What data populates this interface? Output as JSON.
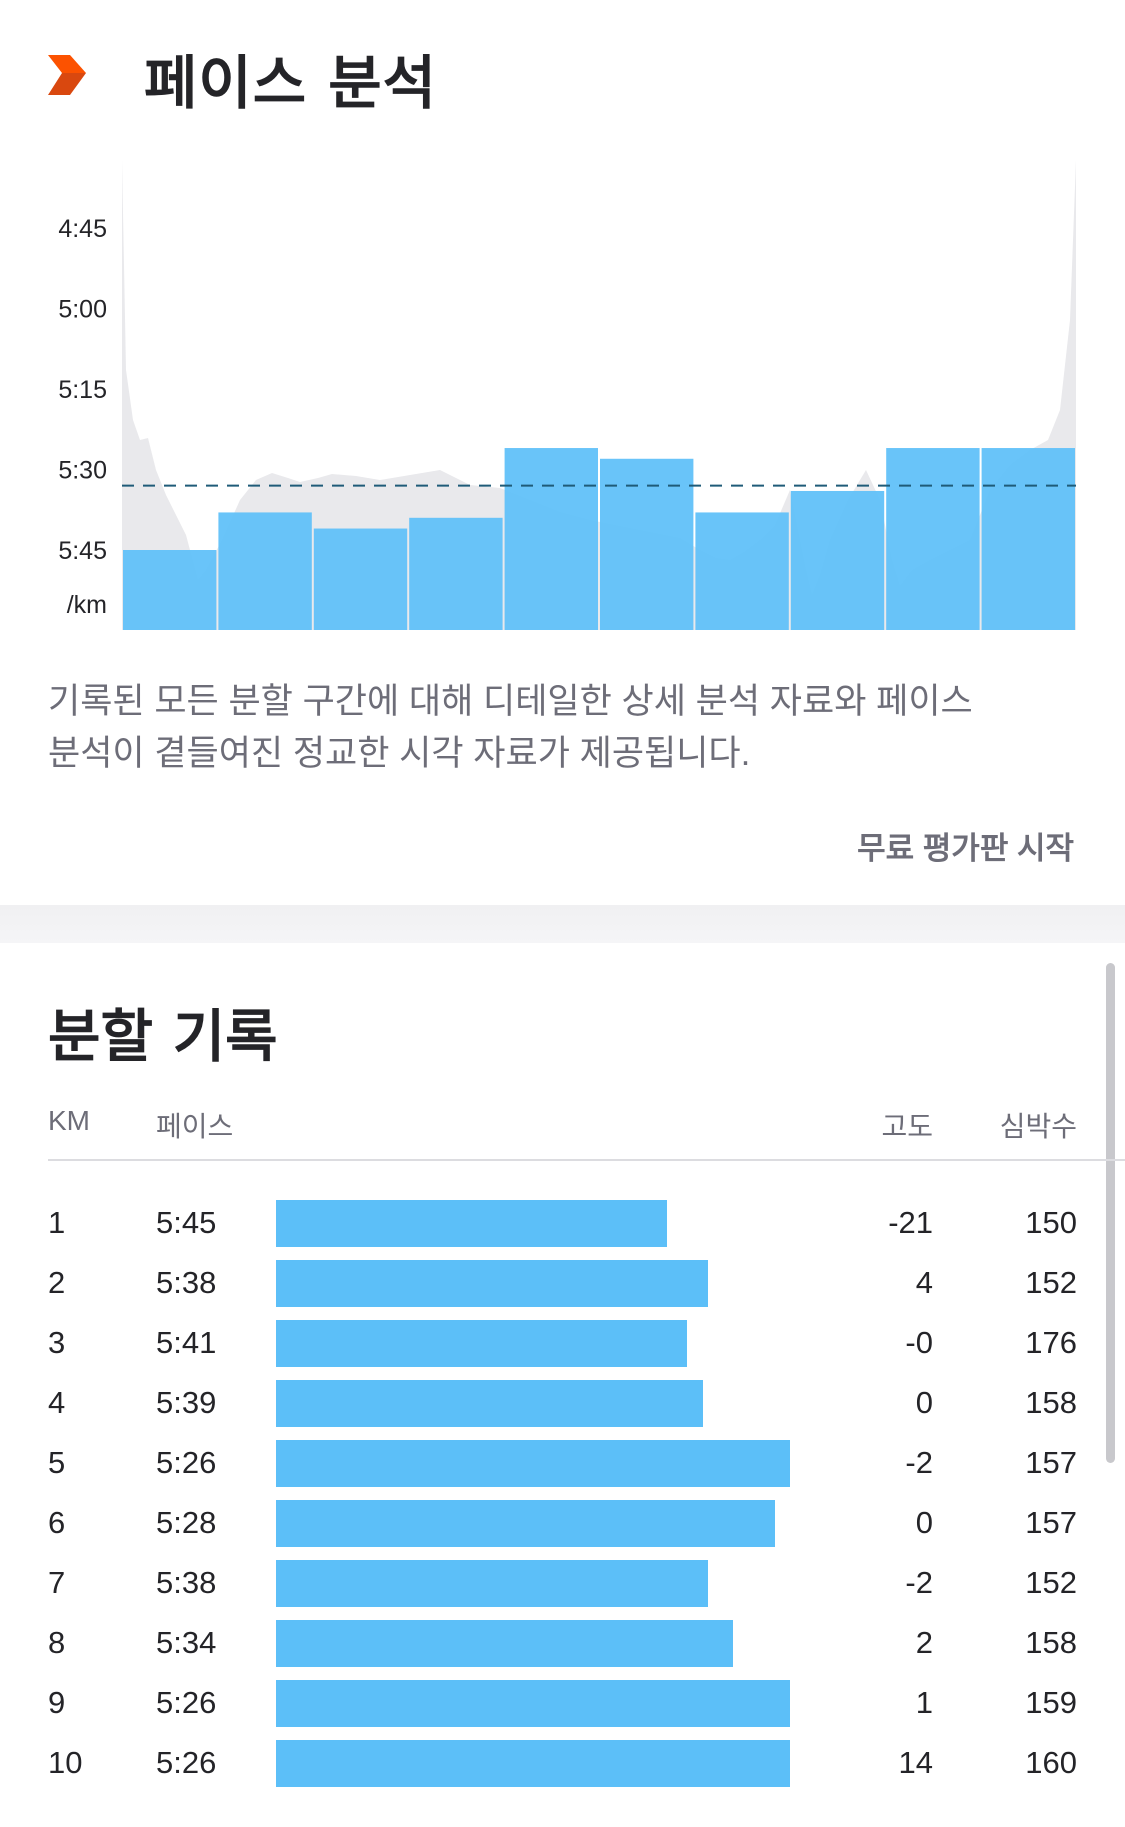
{
  "pace_card": {
    "title": "페이스 분석",
    "logo_icon": "strava-chevron-icon",
    "description_line1": "기록된 모든 분할 구간에 대해 디테일한 상세 분석 자료와 페이스",
    "description_line2": "분석이 곁들여진 정교한 시각 자료가 제공됩니다.",
    "trial_link": "무료 평가판 시작"
  },
  "chart_data": {
    "type": "bar",
    "categories": [
      "1",
      "2",
      "3",
      "4",
      "5",
      "6",
      "7",
      "8",
      "9",
      "10"
    ],
    "values": [
      "5:45",
      "5:38",
      "5:41",
      "5:39",
      "5:26",
      "5:28",
      "5:38",
      "5:34",
      "5:26",
      "5:26"
    ],
    "values_seconds_per_km": [
      345,
      338,
      341,
      339,
      326,
      328,
      338,
      334,
      326,
      326
    ],
    "y_tick_labels": [
      "4:45",
      "5:00",
      "5:15",
      "5:30",
      "5:45"
    ],
    "y_unit_label": "/km",
    "average_line": "5:33",
    "average_line_seconds": 333,
    "y_axis_inverted": true,
    "ylim_seconds": [
      360,
      278
    ],
    "bar_color": "#5cbff8",
    "background_trace_color": "#e9e9ec",
    "average_line_color": "#1f5b78"
  },
  "splits": {
    "title": "분할 기록",
    "headers": {
      "km": "KM",
      "pace": "페이스",
      "elevation": "고도",
      "heart_rate": "심박수"
    },
    "bar_color": "#5cbff8",
    "rows": [
      {
        "km": "1",
        "pace": "5:45",
        "elevation": "-21",
        "hr": "150",
        "bar_fraction": 0.76
      },
      {
        "km": "2",
        "pace": "5:38",
        "elevation": "4",
        "hr": "152",
        "bar_fraction": 0.84
      },
      {
        "km": "3",
        "pace": "5:41",
        "elevation": "-0",
        "hr": "176",
        "bar_fraction": 0.8
      },
      {
        "km": "4",
        "pace": "5:39",
        "elevation": "0",
        "hr": "158",
        "bar_fraction": 0.83
      },
      {
        "km": "5",
        "pace": "5:26",
        "elevation": "-2",
        "hr": "157",
        "bar_fraction": 1.0
      },
      {
        "km": "6",
        "pace": "5:28",
        "elevation": "0",
        "hr": "157",
        "bar_fraction": 0.97
      },
      {
        "km": "7",
        "pace": "5:38",
        "elevation": "-2",
        "hr": "152",
        "bar_fraction": 0.84
      },
      {
        "km": "8",
        "pace": "5:34",
        "elevation": "2",
        "hr": "158",
        "bar_fraction": 0.89
      },
      {
        "km": "9",
        "pace": "5:26",
        "elevation": "1",
        "hr": "159",
        "bar_fraction": 1.0
      },
      {
        "km": "10",
        "pace": "5:26",
        "elevation": "14",
        "hr": "160",
        "bar_fraction": 1.0
      }
    ]
  }
}
